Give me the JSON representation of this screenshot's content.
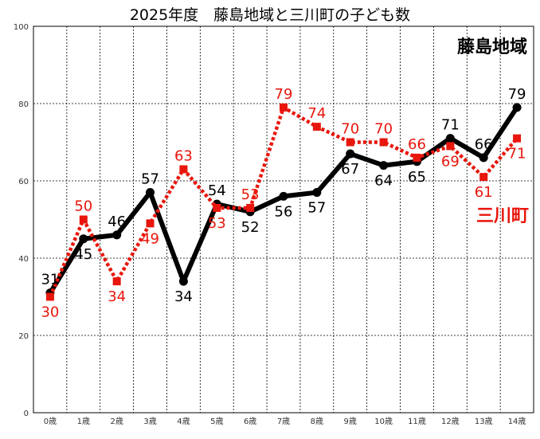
{
  "chart_data": {
    "type": "line",
    "title": "2025年度　藤島地域と三川町の子ども数",
    "categories": [
      "0歳",
      "1歳",
      "2歳",
      "3歳",
      "4歳",
      "5歳",
      "6歳",
      "7歳",
      "8歳",
      "9歳",
      "10歳",
      "11歳",
      "12歳",
      "13歳",
      "14歳"
    ],
    "ylim": [
      0,
      100
    ],
    "yticks": [
      0,
      20,
      40,
      60,
      80,
      100
    ],
    "grid": true,
    "series": [
      {
        "name": "藤島地域",
        "color": "#000000",
        "style": "solid",
        "marker": "circle",
        "values": [
          31,
          45,
          46,
          57,
          34,
          54,
          52,
          56,
          57,
          67,
          64,
          65,
          71,
          66,
          79
        ]
      },
      {
        "name": "三川町",
        "color": "#e8160c",
        "style": "dotted",
        "marker": "square",
        "values": [
          30,
          50,
          34,
          49,
          63,
          53,
          53,
          79,
          74,
          70,
          70,
          66,
          69,
          61,
          71
        ]
      }
    ]
  }
}
